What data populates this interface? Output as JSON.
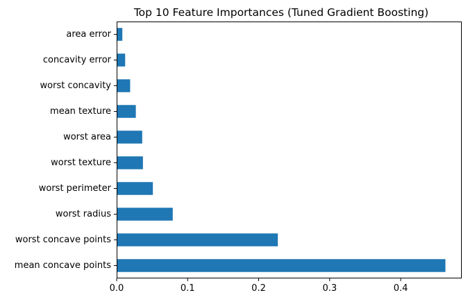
{
  "chart_data": {
    "type": "bar",
    "orientation": "horizontal",
    "title": "Top 10 Feature Importances (Tuned Gradient Boosting)",
    "xlabel": "",
    "ylabel": "",
    "categories": [
      "mean concave points",
      "worst concave points",
      "worst radius",
      "worst perimeter",
      "worst texture",
      "worst area",
      "mean texture",
      "worst concavity",
      "concavity error",
      "area error"
    ],
    "values": [
      0.463,
      0.227,
      0.079,
      0.051,
      0.037,
      0.036,
      0.027,
      0.019,
      0.012,
      0.008
    ],
    "xlim": [
      0,
      0.486
    ],
    "xticks": [
      0.0,
      0.1,
      0.2,
      0.3,
      0.4
    ],
    "xtick_labels": [
      "0.0",
      "0.1",
      "0.2",
      "0.3",
      "0.4"
    ],
    "grid": false,
    "legend": "none",
    "bar_color": "#1f77b4"
  }
}
